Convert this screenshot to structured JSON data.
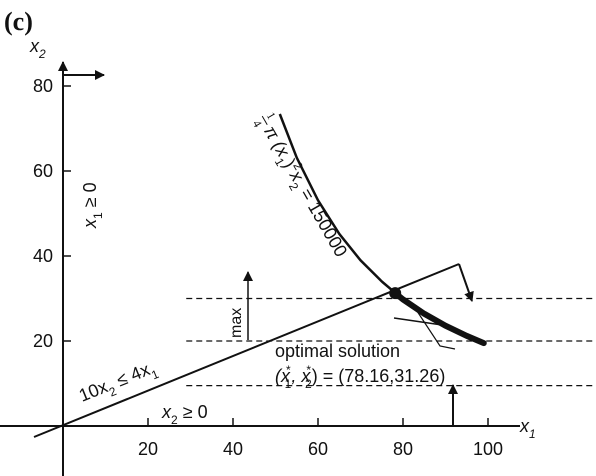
{
  "panel_label": "(c)",
  "axes": {
    "x_label": "x",
    "x_sub": "1",
    "y_label": "x",
    "y_sub": "2",
    "x_ticks": [
      "20",
      "40",
      "60",
      "80",
      "100"
    ],
    "y_ticks": [
      "20",
      "40",
      "60",
      "80"
    ]
  },
  "constraints": {
    "x1_nonneg": {
      "lhs": "x",
      "sub": "1",
      "rel": " ≥ 0"
    },
    "x2_nonneg": {
      "lhs": "x",
      "sub": "2",
      "rel": " ≥ 0"
    },
    "ratio": {
      "a": "10x",
      "a_sub": "2",
      "rel": " ≤ 4x",
      "b_sub": "1"
    }
  },
  "objective": {
    "frac_num": "1",
    "frac_den": "4",
    "text_a": "π (x",
    "sub_a": "1",
    "text_b": ")",
    "sup": "2",
    "text_c": "x",
    "sub_c": "2",
    "text_d": " = 150000"
  },
  "direction_label": "max",
  "solution": {
    "label": "optimal solution",
    "lhs_open": "(x",
    "sub1": "1",
    "sep": ", x",
    "sub2": "2",
    "rhs": ") = (78.16,31.26)",
    "star": "*"
  },
  "chart_data": {
    "type": "line",
    "xlim": [
      0,
      100
    ],
    "ylim": [
      0,
      80
    ],
    "x_ticks": [
      20,
      40,
      60,
      80,
      100
    ],
    "y_ticks": [
      20,
      40,
      60,
      80
    ],
    "series": [
      {
        "name": "10x2 ≤ 4x1",
        "x": [
          0,
          93
        ],
        "y": [
          0,
          37.2
        ]
      },
      {
        "name": "1/4 π (x1)^2 x2 = 150000",
        "x": [
          51,
          55,
          60,
          65,
          70,
          75,
          80,
          85,
          90,
          95,
          99
        ],
        "y": [
          73.4,
          63.1,
          53.1,
          45.2,
          39.0,
          34.0,
          29.8,
          26.4,
          23.6,
          21.2,
          19.5
        ]
      }
    ],
    "dashed_levels": [
      30,
      20,
      9.5
    ],
    "optimum": {
      "x": 78.16,
      "y": 31.26
    }
  }
}
